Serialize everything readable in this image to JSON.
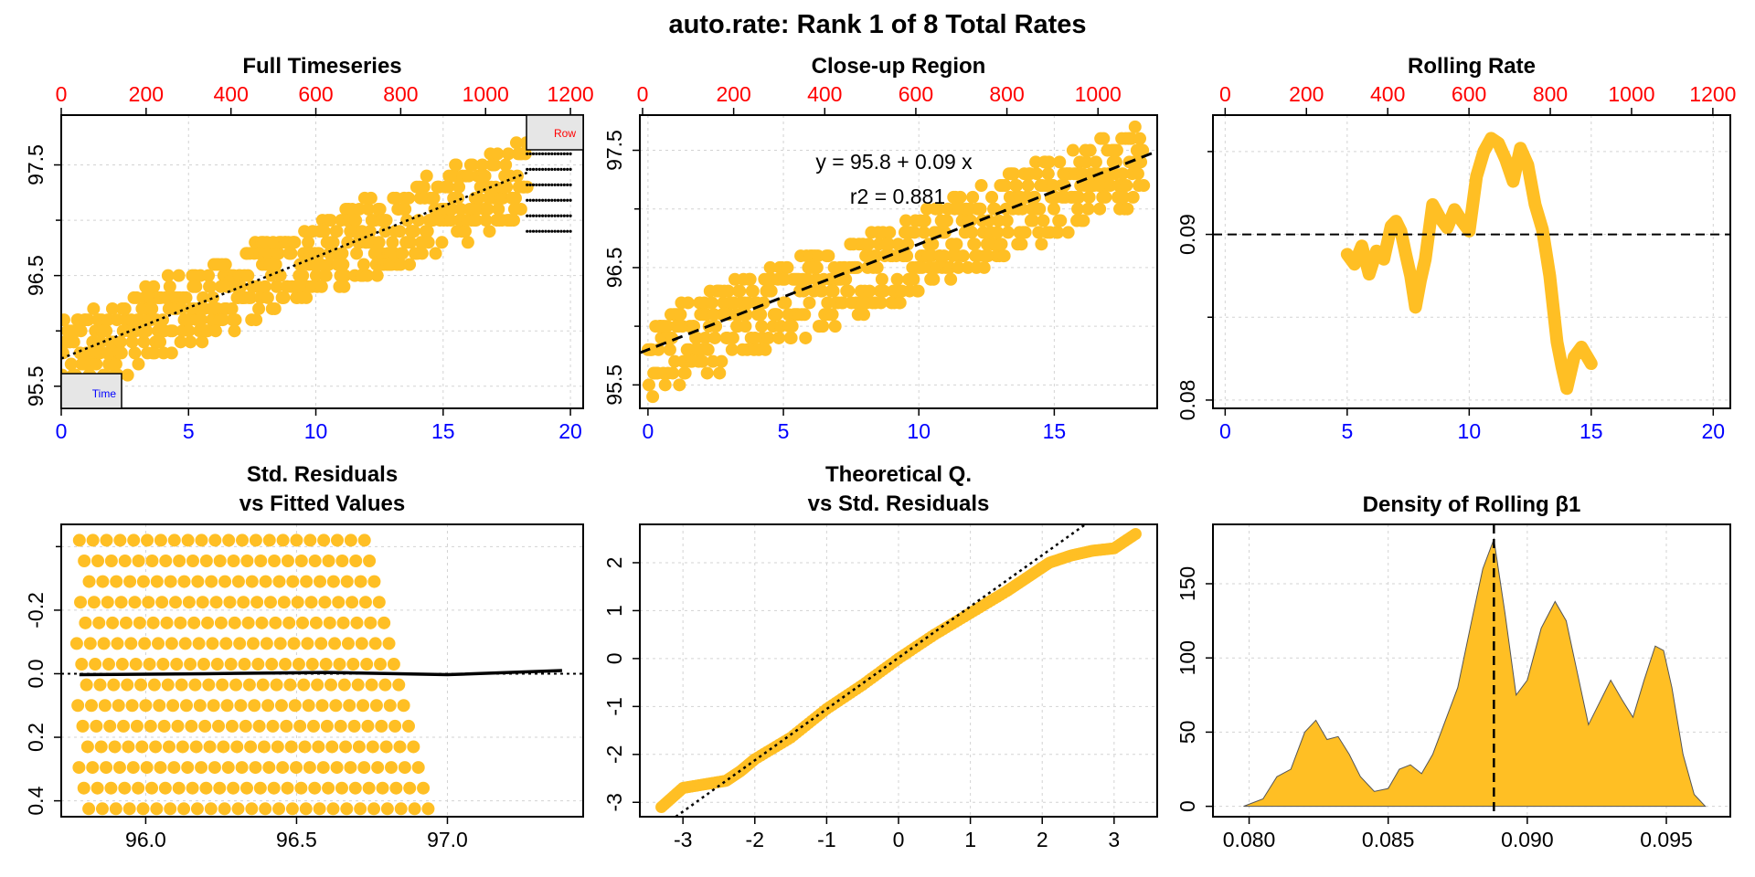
{
  "figure": {
    "title": "auto.rate: Rank 1 of 8 Total Rates",
    "colors": {
      "points": "#FFBF24",
      "axis_bottom_row": "#0000FF",
      "axis_top_row": "#FF0000",
      "grid": "#D3D3D3",
      "line": "#000000"
    }
  },
  "chart_data": [
    {
      "id": "full-timeseries",
      "type": "scatter",
      "title": "Full Timeseries",
      "xlim": [
        0,
        20.5
      ],
      "ylim": [
        95.3,
        97.95
      ],
      "x_ticks": [
        0,
        5,
        10,
        15,
        20
      ],
      "y_ticks": [
        95.5,
        96.5,
        97.5
      ],
      "y_minor_ticks": [
        96.0,
        97.0
      ],
      "top_axis": {
        "label": "Row",
        "lim": [
          0,
          1230
        ],
        "ticks": [
          0,
          200,
          400,
          600,
          800,
          1000,
          1200
        ]
      },
      "bottom_axis_label": "Time",
      "series": [
        {
          "kind": "points",
          "x_range": [
            0,
            18.3
          ],
          "y_start": 95.75,
          "slope": 0.09,
          "spread": 0.35
        },
        {
          "kind": "small-points",
          "x_range": [
            18.3,
            20
          ],
          "y_range": [
            96.9,
            97.6
          ]
        },
        {
          "kind": "dotted-fit",
          "x": [
            0,
            18.3
          ],
          "y": [
            95.75,
            97.43
          ]
        }
      ]
    },
    {
      "id": "close-up-region",
      "type": "scatter",
      "title": "Close-up Region",
      "xlim": [
        -0.3,
        18.8
      ],
      "ylim": [
        95.3,
        97.8
      ],
      "x_ticks": [
        0,
        5,
        10,
        15
      ],
      "y_ticks": [
        95.5,
        96.5,
        97.5
      ],
      "y_minor_ticks": [
        96.0,
        97.0
      ],
      "top_axis": {
        "lim": [
          -6,
          1130
        ],
        "ticks": [
          0,
          200,
          400,
          600,
          800,
          1000
        ]
      },
      "annotations": [
        "y = 95.8 + 0.09 x",
        "r2 = 0.881"
      ],
      "series": [
        {
          "kind": "points",
          "x_range": [
            0,
            18.3
          ],
          "y_start": 95.75,
          "slope": 0.09,
          "spread": 0.35
        },
        {
          "kind": "dashed-fit",
          "intercept": 95.8,
          "slope": 0.09
        }
      ]
    },
    {
      "id": "rolling-rate",
      "type": "line",
      "title": "Rolling Rate",
      "xlim": [
        -0.5,
        20.7
      ],
      "ylim": [
        0.0795,
        0.0972
      ],
      "x_ticks": [
        0,
        5,
        10,
        15,
        20
      ],
      "y_ticks": [
        0.08,
        0.09
      ],
      "y_minor_ticks": [
        0.085,
        0.095
      ],
      "top_axis": {
        "lim": [
          -30,
          1243
        ],
        "ticks": [
          0,
          200,
          400,
          600,
          800,
          1000,
          1200
        ]
      },
      "reference_y": 0.09,
      "series": [
        {
          "kind": "thick-line",
          "x": [
            5.0,
            5.3,
            5.6,
            5.9,
            6.2,
            6.5,
            6.8,
            7.0,
            7.2,
            7.4,
            7.6,
            7.8,
            8.0,
            8.2,
            8.5,
            8.8,
            9.1,
            9.4,
            9.7,
            10.0,
            10.3,
            10.6,
            10.9,
            11.2,
            11.5,
            11.8,
            12.1,
            12.4,
            12.7,
            13.0,
            13.3,
            13.6,
            13.8,
            14.0,
            14.3,
            14.6,
            15.0
          ],
          "y": [
            0.0888,
            0.0882,
            0.0893,
            0.0876,
            0.089,
            0.0885,
            0.0905,
            0.0908,
            0.0902,
            0.0888,
            0.0875,
            0.0856,
            0.0872,
            0.0885,
            0.0918,
            0.091,
            0.0904,
            0.0915,
            0.0908,
            0.0902,
            0.0935,
            0.095,
            0.0958,
            0.0955,
            0.0945,
            0.0932,
            0.0952,
            0.0942,
            0.0918,
            0.0903,
            0.0875,
            0.0835,
            0.082,
            0.0807,
            0.0826,
            0.0832,
            0.0822
          ]
        }
      ]
    },
    {
      "id": "std-residuals-vs-fitted",
      "type": "scatter",
      "title": [
        "Std. Residuals",
        "vs Fitted Values"
      ],
      "xlim": [
        95.72,
        97.45
      ],
      "ylim": [
        0.45,
        -0.47
      ],
      "x_ticks": [
        96.0,
        96.5,
        97.0
      ],
      "x_tick_labels": [
        "96.0",
        "96.5",
        "97.0"
      ],
      "y_ticks": [
        -0.2,
        0.0,
        0.2,
        0.4
      ],
      "y_tick_labels": [
        "-0.2",
        "0.0",
        "0.2",
        "0.4"
      ],
      "y_minor_ticks": [
        -0.4
      ],
      "series": [
        {
          "kind": "diagonal-bands",
          "band_spacing": 0.045,
          "slope": 4.0
        },
        {
          "kind": "dotted-zero",
          "y": 0.0
        },
        {
          "kind": "smooth-line",
          "x": [
            95.78,
            96.2,
            96.6,
            97.0,
            97.38
          ],
          "y": [
            0.003,
            0.0,
            -0.004,
            0.003,
            -0.01
          ]
        }
      ]
    },
    {
      "id": "qq-plot",
      "type": "scatter",
      "title": [
        "Theoretical Q.",
        "vs Std. Residuals"
      ],
      "xlim": [
        -3.6,
        3.6
      ],
      "ylim": [
        -3.3,
        2.8
      ],
      "x_ticks": [
        -3,
        -2,
        -1,
        0,
        1,
        2,
        3
      ],
      "y_ticks": [
        -3,
        -2,
        -1,
        0,
        1,
        2
      ],
      "series": [
        {
          "kind": "qq-points",
          "x": [
            -3.3,
            -3.0,
            -2.8,
            -2.6,
            -2.4,
            -2.2,
            -2.0,
            -1.5,
            -1.0,
            -0.5,
            0,
            0.5,
            1.0,
            1.5,
            1.8,
            2.1,
            2.4,
            2.7,
            3.0,
            3.3
          ],
          "y": [
            -3.1,
            -2.7,
            -2.65,
            -2.6,
            -2.55,
            -2.35,
            -2.1,
            -1.65,
            -1.05,
            -0.55,
            0.0,
            0.5,
            0.95,
            1.4,
            1.7,
            2.0,
            2.15,
            2.25,
            2.3,
            2.6
          ]
        },
        {
          "kind": "dotted-reference",
          "x": [
            -3.1,
            2.6
          ],
          "y": [
            -3.3,
            2.8
          ]
        }
      ]
    },
    {
      "id": "density-rolling-beta",
      "type": "area",
      "title": "Density of Rolling β1",
      "xlim": [
        0.0787,
        0.0973
      ],
      "ylim": [
        -7,
        190
      ],
      "x_ticks": [
        0.08,
        0.085,
        0.09,
        0.095
      ],
      "x_tick_labels": [
        "0.080",
        "0.085",
        "0.090",
        "0.095"
      ],
      "y_ticks": [
        0,
        50,
        100,
        150
      ],
      "reference_x": 0.0888,
      "series": [
        {
          "kind": "density",
          "x": [
            0.0798,
            0.0805,
            0.081,
            0.0815,
            0.082,
            0.0824,
            0.0828,
            0.0832,
            0.0836,
            0.084,
            0.0845,
            0.085,
            0.0854,
            0.0858,
            0.0862,
            0.0866,
            0.087,
            0.0875,
            0.088,
            0.0884,
            0.0888,
            0.0892,
            0.0896,
            0.09,
            0.0905,
            0.091,
            0.0914,
            0.0918,
            0.0922,
            0.0926,
            0.093,
            0.0934,
            0.0938,
            0.0942,
            0.0946,
            0.0949,
            0.0952,
            0.0956,
            0.096,
            0.0964
          ],
          "y": [
            0,
            5,
            20,
            25,
            50,
            58,
            45,
            47,
            35,
            20,
            10,
            12,
            25,
            28,
            22,
            35,
            55,
            80,
            125,
            160,
            180,
            130,
            75,
            85,
            120,
            138,
            125,
            90,
            55,
            70,
            85,
            72,
            60,
            85,
            108,
            105,
            80,
            35,
            8,
            0
          ]
        }
      ]
    }
  ]
}
